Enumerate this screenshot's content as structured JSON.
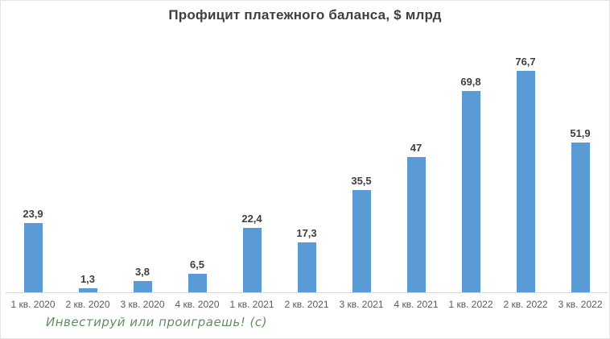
{
  "chart_data": {
    "type": "bar",
    "title": "Профицит платежного баланса, $ млрд",
    "categories": [
      "1 кв. 2020",
      "2 кв. 2020",
      "3 кв. 2020",
      "4 кв. 2020",
      "1 кв. 2021",
      "2 кв. 2021",
      "3 кв. 2021",
      "4 кв. 2021",
      "1 кв. 2022",
      "2 кв. 2022",
      "3 кв. 2022"
    ],
    "values": [
      23.9,
      1.3,
      3.8,
      6.5,
      22.4,
      17.3,
      35.5,
      47,
      69.8,
      76.7,
      51.9
    ],
    "value_labels": [
      "23,9",
      "1,3",
      "3,8",
      "6,5",
      "22,4",
      "17,3",
      "35,5",
      "47",
      "69,8",
      "76,7",
      "51,9"
    ],
    "xlabel": "",
    "ylabel": "",
    "ylim": [
      0,
      90.7
    ],
    "grid": false,
    "legend": "none",
    "bar_color": "#5b9bd5",
    "axis_line_color": "#d6d6d6",
    "title_color": "#3f3f3f",
    "value_label_color": "#3f3f3f",
    "tick_label_color": "#595959"
  },
  "watermark": {
    "text": "Инвестируй или проиграешь! (с)",
    "color": "#5f8f5f"
  }
}
